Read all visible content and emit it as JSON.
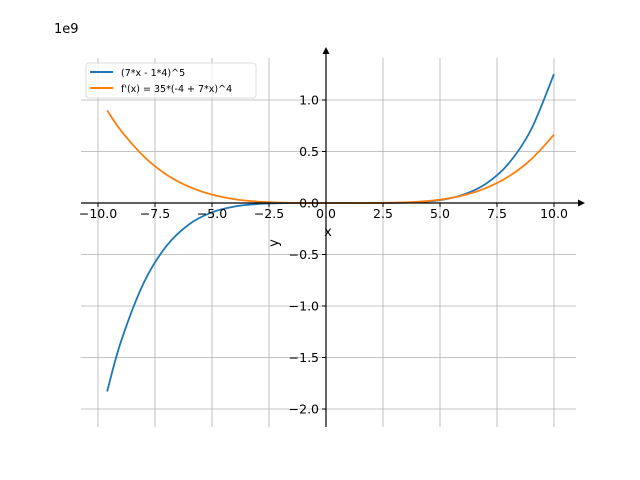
{
  "chart_data": {
    "type": "line",
    "offset_label": "1e9",
    "xlabel": "x",
    "ylabel": "y",
    "xlim": [
      -10.9,
      11.2
    ],
    "ylim": [
      -2.2,
      1.42
    ],
    "grid": true,
    "legend_placement": "top-left",
    "x_ticks": [
      -10,
      -7.5,
      -5,
      -2.5,
      0,
      2.5,
      5,
      7.5,
      10
    ],
    "x_tick_labels": [
      "−10.0",
      "−7.5",
      "−5.0",
      "−2.5",
      "0.0",
      "2.5",
      "5.0",
      "7.5",
      "10.0"
    ],
    "y_ticks": [
      1.0,
      0.5,
      0.0,
      -0.5,
      -1.0,
      -1.5,
      -2.0
    ],
    "y_tick_labels": [
      "1.0",
      "0.5",
      "0.0",
      "−0.5",
      "−1.0",
      "−1.5",
      "−2.0"
    ],
    "x": [
      -9.6,
      -9,
      -8,
      -7,
      -6,
      -5,
      -4,
      -3,
      -2,
      -1,
      0,
      1,
      2,
      3,
      4,
      5,
      6,
      7,
      8,
      9,
      10
    ],
    "series": [
      {
        "name": "(7*x - 1*4)^5",
        "color": "#1f77b4",
        "values": [
          -1.83,
          -1.35,
          -0.778,
          -0.418,
          -0.206,
          -0.0902,
          -0.0336,
          -0.0098,
          -0.0019,
          -0.0002,
          0.0,
          0.0,
          0.0001,
          0.0014,
          0.008,
          0.0286,
          0.0792,
          0.1845,
          0.3802,
          0.7149,
          1.2523
        ]
      },
      {
        "name": "f'(x) = 35*(-4 + 7*x)^4",
        "color": "#ff7f0e",
        "values": [
          0.899,
          0.705,
          0.454,
          0.276,
          0.157,
          0.081,
          0.0367,
          0.0137,
          0.0037,
          0.0005,
          0.0,
          0.0,
          0.0004,
          0.0029,
          0.0116,
          0.0323,
          0.073,
          0.1435,
          0.2559,
          0.4241,
          0.6641
        ]
      }
    ]
  }
}
